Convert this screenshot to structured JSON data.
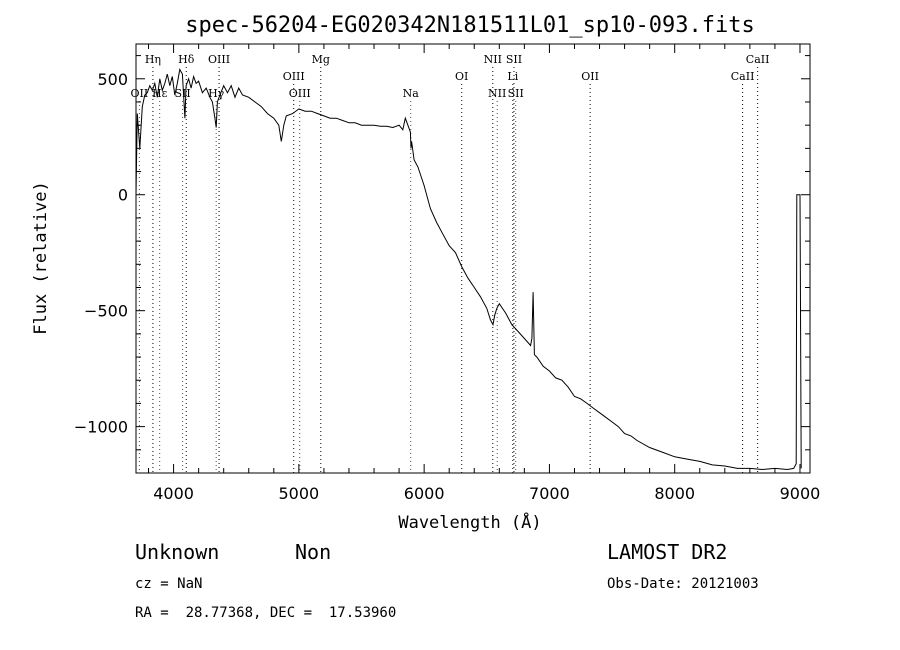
{
  "chart_data": {
    "type": "line",
    "title": "spec-56204-EG020342N181511L01_sp10-093.fits",
    "xlabel": "Wavelength (Å)",
    "ylabel": "Flux (relative)",
    "xlim": [
      3700,
      9080
    ],
    "ylim": [
      -1200,
      650
    ],
    "xticks": [
      4000,
      5000,
      6000,
      7000,
      8000,
      9000
    ],
    "yticks": [
      -1000,
      -500,
      0,
      500
    ],
    "series": [
      {
        "x": [
          3700,
          3710,
          3730,
          3750,
          3770,
          3790,
          3810,
          3830,
          3850,
          3870,
          3890,
          3910,
          3930,
          3950,
          3970,
          3990,
          4010,
          4030,
          4050,
          4070,
          4090,
          4100,
          4120,
          4140,
          4160,
          4180,
          4200,
          4230,
          4260,
          4290,
          4310,
          4330,
          4340,
          4350,
          4370,
          4400,
          4430,
          4460,
          4490,
          4520,
          4550,
          4600,
          4650,
          4700,
          4750,
          4800,
          4840,
          4860,
          4880,
          4900,
          4950,
          5000,
          5050,
          5100,
          5150,
          5200,
          5250,
          5300,
          5350,
          5400,
          5450,
          5500,
          5550,
          5600,
          5650,
          5700,
          5750,
          5800,
          5830,
          5850,
          5870,
          5890,
          5895,
          5900,
          5920,
          5950,
          6000,
          6050,
          6100,
          6150,
          6200,
          6250,
          6300,
          6350,
          6400,
          6450,
          6500,
          6530,
          6550,
          6563,
          6580,
          6600,
          6650,
          6700,
          6750,
          6800,
          6850,
          6860,
          6870,
          6880,
          6900,
          6950,
          7000,
          7050,
          7100,
          7150,
          7200,
          7250,
          7300,
          7350,
          7400,
          7450,
          7500,
          7550,
          7600,
          7650,
          7700,
          7800,
          7900,
          8000,
          8100,
          8200,
          8300,
          8400,
          8500,
          8600,
          8700,
          8800,
          8900,
          8950,
          8960,
          8970,
          8975,
          9000,
          9010
        ],
        "y": [
          0,
          350,
          200,
          380,
          430,
          440,
          470,
          450,
          480,
          420,
          500,
          450,
          480,
          520,
          470,
          510,
          430,
          480,
          540,
          520,
          330,
          470,
          500,
          460,
          510,
          480,
          490,
          440,
          460,
          420,
          400,
          330,
          290,
          400,
          430,
          470,
          440,
          470,
          420,
          460,
          430,
          420,
          400,
          380,
          350,
          330,
          300,
          230,
          300,
          340,
          350,
          370,
          360,
          360,
          350,
          340,
          330,
          330,
          320,
          310,
          310,
          300,
          300,
          300,
          295,
          295,
          290,
          300,
          280,
          330,
          300,
          270,
          200,
          230,
          150,
          120,
          40,
          -60,
          -120,
          -170,
          -220,
          -250,
          -310,
          -360,
          -400,
          -440,
          -490,
          -540,
          -560,
          -520,
          -490,
          -470,
          -510,
          -560,
          -590,
          -620,
          -650,
          -620,
          -420,
          -690,
          -700,
          -740,
          -760,
          -790,
          -800,
          -830,
          -870,
          -880,
          -900,
          -920,
          -940,
          -960,
          -980,
          -1000,
          -1030,
          -1040,
          -1060,
          -1090,
          -1110,
          -1130,
          -1140,
          -1150,
          -1165,
          -1170,
          -1180,
          -1180,
          -1185,
          -1180,
          -1185,
          -1180,
          -1170,
          -1160,
          0,
          0,
          -1180
        ]
      }
    ],
    "lines_top": [
      {
        "label": "Hη",
        "x": 3835
      },
      {
        "label": "Hδ",
        "x": 4101
      },
      {
        "label": "OIII",
        "x": 4363
      },
      {
        "label": "Mg",
        "x": 5175
      },
      {
        "label": "NII",
        "x": 6548
      },
      {
        "label": "SII",
        "x": 6717
      },
      {
        "label": "CaII",
        "x": 8662
      }
    ],
    "lines_mid": [
      {
        "label": "OIII",
        "x": 4959
      },
      {
        "label": "OI",
        "x": 6300
      },
      {
        "label": "Li",
        "x": 6708
      },
      {
        "label": "OII",
        "x": 7325
      },
      {
        "label": "CaII",
        "x": 8542
      }
    ],
    "lines_low": [
      {
        "label": "OII",
        "x": 3727
      },
      {
        "label": "Hε",
        "x": 3889
      },
      {
        "label": "SII",
        "x": 4072
      },
      {
        "label": "Hγ",
        "x": 4340
      },
      {
        "label": "OIII",
        "x": 5007
      },
      {
        "label": "Na",
        "x": 5893
      },
      {
        "label": "NII",
        "x": 6583
      },
      {
        "label": "SII",
        "x": 6731
      }
    ],
    "grid": false,
    "legend": "none"
  },
  "info": {
    "type_text": "Unknown",
    "subclass_text": "Non",
    "survey_text": "LAMOST DR2",
    "cz_text": "cz = NaN",
    "obs_date_text": "Obs-Date: 20121003",
    "radec_text": "RA =  28.77368, DEC =  17.53960"
  },
  "colors": {
    "spectrum": "#000000",
    "emission_line": "#000000",
    "absorption_line": "#ff0000"
  }
}
